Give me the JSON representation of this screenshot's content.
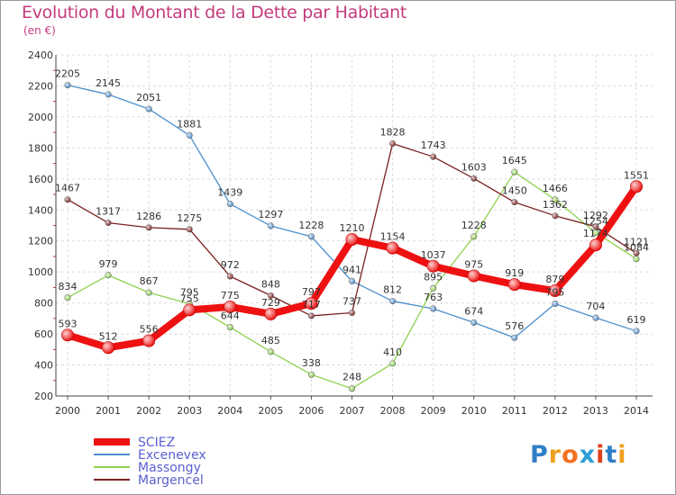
{
  "title": "Evolution du Montant de la Dette par Habitant",
  "subtitle": "(en €)",
  "logo": {
    "letters": [
      "P",
      "r",
      "o",
      "x",
      "i",
      "t",
      "i"
    ],
    "colors": [
      "#2f7fc6",
      "#f0a020",
      "#f07020",
      "#2f9fd6",
      "#e0401a",
      "#2f7fc6",
      "#f0a020"
    ]
  },
  "chart_data": {
    "type": "line",
    "categories": [
      "2000",
      "2001",
      "2002",
      "2003",
      "2004",
      "2005",
      "2006",
      "2007",
      "2008",
      "2009",
      "2010",
      "2011",
      "2012",
      "2013",
      "2014"
    ],
    "ylim": [
      200,
      2400
    ],
    "yticks": [
      "200",
      "400",
      "600",
      "800",
      "1000",
      "1200",
      "1400",
      "1600",
      "1800",
      "2000",
      "2200",
      "2400"
    ],
    "grid": true,
    "legend_position": "bottom-left",
    "series": [
      {
        "name": "SCIEZ",
        "color": "#ee1111",
        "labels": [
          "593",
          "512",
          "556",
          "755",
          "775",
          "729",
          "797",
          "1210",
          "1154",
          "1037",
          "975",
          "919",
          "879",
          "1174",
          "1551"
        ],
        "values": [
          593,
          512,
          556,
          755,
          775,
          729,
          797,
          1210,
          1154,
          1037,
          975,
          919,
          879,
          1174,
          1551
        ]
      },
      {
        "name": "Excenevex",
        "color": "#4a8fcf",
        "labels": [
          "2205",
          "2145",
          "2051",
          "1881",
          "1439",
          "1297",
          "1228",
          "941",
          "812",
          "763",
          "674",
          "576",
          "795",
          "704",
          "619"
        ],
        "values": [
          2205,
          2145,
          2051,
          1881,
          1439,
          1297,
          1228,
          941,
          812,
          763,
          674,
          576,
          795,
          704,
          619
        ]
      },
      {
        "name": "Massongy",
        "color": "#8fd14f",
        "labels": [
          "834",
          "979",
          "867",
          "795",
          "644",
          "485",
          "338",
          "248",
          "410",
          "895",
          "1228",
          "1645",
          "1466",
          "1254",
          "1084"
        ],
        "values": [
          834,
          979,
          867,
          795,
          644,
          485,
          338,
          248,
          410,
          895,
          1228,
          1645,
          1466,
          1254,
          1084
        ]
      },
      {
        "name": "Margencel",
        "color": "#7a1f1f",
        "labels": [
          "1467",
          "1317",
          "1286",
          "1275",
          "972",
          "848",
          "717",
          "737",
          "1828",
          "1743",
          "1603",
          "1450",
          "1362",
          "1292",
          "1121"
        ],
        "values": [
          1467,
          1317,
          1286,
          1275,
          972,
          848,
          717,
          737,
          1828,
          1743,
          1603,
          1450,
          1362,
          1292,
          1121
        ]
      }
    ]
  }
}
